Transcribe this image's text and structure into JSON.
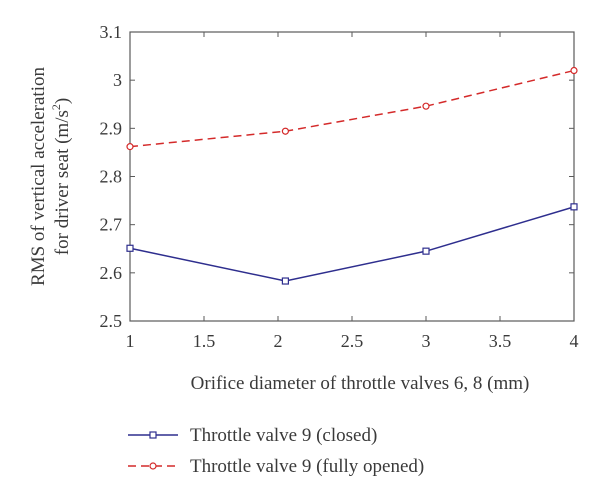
{
  "chart_data": {
    "type": "line",
    "xlabel": "Orifice diameter of throttle valves 6, 8 (mm)",
    "ylabel_line1": "RMS of vertical acceleration",
    "ylabel_line2_prefix": "for driver seat (m/s",
    "ylabel_line2_sup": "2",
    "ylabel_line2_suffix": ")",
    "xlim": [
      1,
      4
    ],
    "ylim": [
      2.5,
      3.1
    ],
    "x_ticks": [
      1,
      1.5,
      2,
      2.5,
      3,
      3.5,
      4
    ],
    "x_tick_labels": [
      "1",
      "1.5",
      "2",
      "2.5",
      "3",
      "3.5",
      "4"
    ],
    "y_ticks": [
      2.5,
      2.6,
      2.7,
      2.8,
      2.9,
      3.0,
      3.1
    ],
    "y_tick_labels": [
      "2.5",
      "2.6",
      "2.7",
      "2.8",
      "2.9",
      "3",
      "3.1"
    ],
    "grid": false,
    "legend_position": "bottom",
    "series": [
      {
        "name": "Throttle valve 9 (closed)",
        "color": "#2e2e8e",
        "line_style": "solid",
        "marker": "square",
        "x": [
          1,
          2.05,
          3,
          4
        ],
        "y": [
          2.651,
          2.583,
          2.645,
          2.737
        ]
      },
      {
        "name": "Throttle valve 9 (fully opened)",
        "color": "#d42a2a",
        "line_style": "dashed",
        "marker": "circle",
        "x": [
          1,
          2.05,
          3,
          4
        ],
        "y": [
          2.862,
          2.894,
          2.946,
          3.02
        ]
      }
    ]
  }
}
